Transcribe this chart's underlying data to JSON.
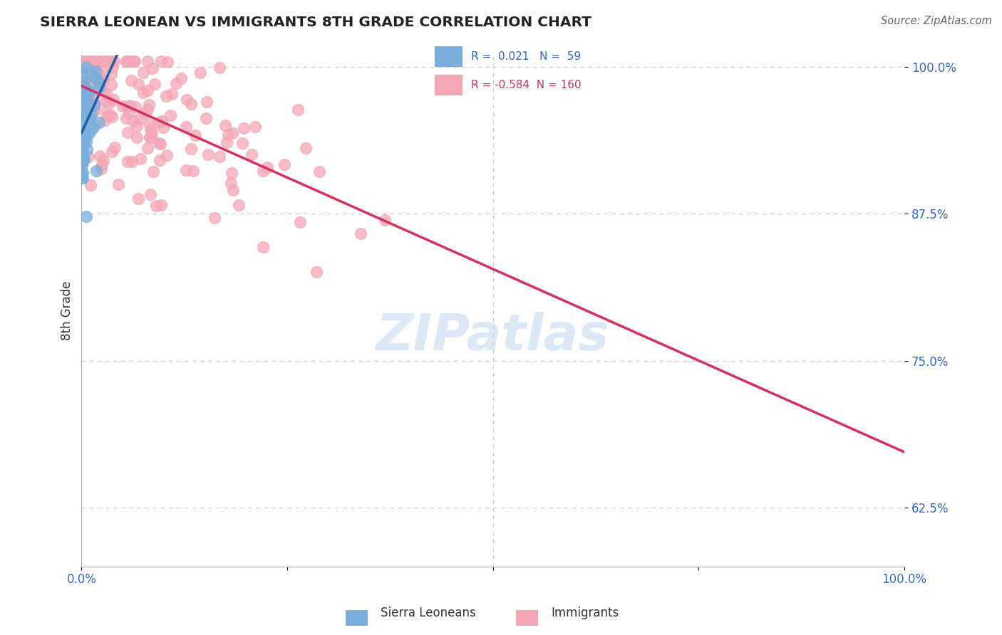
{
  "title": "SIERRA LEONEAN VS IMMIGRANTS 8TH GRADE CORRELATION CHART",
  "source": "Source: ZipAtlas.com",
  "ylabel": "8th Grade",
  "xlim": [
    0.0,
    1.0
  ],
  "ylim": [
    0.575,
    1.01
  ],
  "yticks": [
    0.625,
    0.75,
    0.875,
    1.0
  ],
  "ytick_labels": [
    "62.5%",
    "75.0%",
    "87.5%",
    "100.0%"
  ],
  "legend_r_blue": "0.021",
  "legend_n_blue": "59",
  "legend_r_pink": "-0.584",
  "legend_n_pink": "160",
  "blue_scatter_color": "#7aaedc",
  "pink_scatter_color": "#f4a7b5",
  "blue_line_color": "#1a5fa8",
  "pink_line_color": "#d63060",
  "blue_dash_color": "#5588cc",
  "grid_color": "#cccccc",
  "background": "#ffffff",
  "title_color": "#222222",
  "axis_label_color": "#333333",
  "tick_color": "#3366cc",
  "watermark_color": "#dce8f5"
}
